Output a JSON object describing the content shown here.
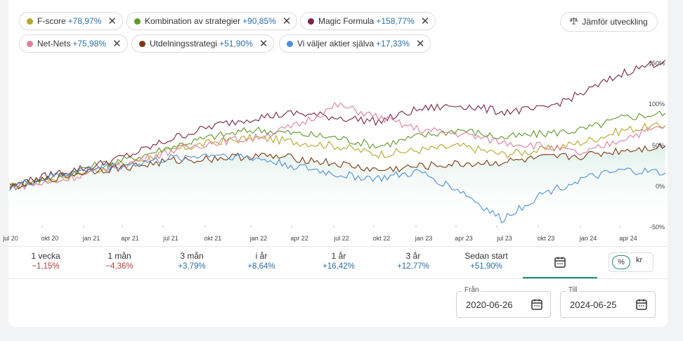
{
  "chips": [
    {
      "name": "F-score",
      "pct": "+78,97%",
      "color": "#b5a72a"
    },
    {
      "name": "Kombination av strategier",
      "pct": "+90,85%",
      "color": "#5e9a2a"
    },
    {
      "name": "Magic Formula",
      "pct": "+158,77%",
      "color": "#7a2448"
    },
    {
      "name": "Net-Nets",
      "pct": "+75,98%",
      "color": "#e07ea0"
    },
    {
      "name": "Utdelningsstrategi",
      "pct": "+51,90%",
      "color": "#7a3a12"
    },
    {
      "name": "Vi väljer aktier själva",
      "pct": "+17,33%",
      "color": "#4f8fdb"
    }
  ],
  "compare_button": "Jämför utveckling",
  "close_glyph": "✕",
  "chart_data": {
    "type": "line",
    "x_ticks": [
      "jul 20",
      "okt 20",
      "jan 21",
      "apr 21",
      "jul 21",
      "okt 21",
      "jan 22",
      "apr 22",
      "jul 22",
      "okt 22",
      "jan 23",
      "apr 23",
      "jul 23",
      "okt 23",
      "jan 24",
      "apr 24"
    ],
    "y_ticks": [
      "150%",
      "100%",
      "50%",
      "0%",
      "-50%"
    ],
    "ylim": [
      -50,
      170
    ],
    "x": [
      "2020-06",
      "2020-09",
      "2020-12",
      "2021-03",
      "2021-06",
      "2021-09",
      "2021-12",
      "2022-03",
      "2022-06",
      "2022-09",
      "2022-12",
      "2023-03",
      "2023-06",
      "2023-09",
      "2023-12",
      "2024-03",
      "2024-06"
    ],
    "series": [
      {
        "name": "F-score",
        "color": "#b5a72a",
        "values": [
          0,
          10,
          20,
          30,
          45,
          55,
          60,
          55,
          50,
          40,
          45,
          50,
          40,
          45,
          55,
          70,
          75
        ]
      },
      {
        "name": "Kombination av strategier",
        "color": "#5e9a2a",
        "values": [
          0,
          12,
          25,
          35,
          50,
          62,
          70,
          65,
          60,
          50,
          62,
          70,
          60,
          65,
          70,
          85,
          90
        ]
      },
      {
        "name": "Magic Formula",
        "color": "#7a2448",
        "values": [
          0,
          15,
          25,
          40,
          60,
          75,
          85,
          90,
          85,
          80,
          95,
          100,
          92,
          95,
          115,
          140,
          155
        ]
      },
      {
        "name": "Net-Nets",
        "color": "#e07ea0",
        "values": [
          0,
          5,
          18,
          30,
          45,
          55,
          60,
          75,
          100,
          85,
          70,
          65,
          55,
          50,
          40,
          60,
          75
        ]
      },
      {
        "name": "Utdelningsstrategi",
        "color": "#7a3a12",
        "values": [
          0,
          10,
          20,
          25,
          32,
          35,
          38,
          35,
          28,
          20,
          25,
          28,
          30,
          35,
          38,
          45,
          50
        ]
      },
      {
        "name": "Vi väljer aktier själva",
        "color": "#4f8fdb",
        "values": [
          0,
          12,
          22,
          28,
          35,
          40,
          35,
          25,
          15,
          10,
          18,
          -5,
          -40,
          -8,
          10,
          20,
          17
        ]
      }
    ]
  },
  "periods": [
    {
      "label": "1 vecka",
      "value": "−1,15%",
      "sign": "neg"
    },
    {
      "label": "1 mån",
      "value": "−4,36%",
      "sign": "neg"
    },
    {
      "label": "3 mån",
      "value": "+3,79%",
      "sign": "pos"
    },
    {
      "label": "i år",
      "value": "+8,64%",
      "sign": "pos"
    },
    {
      "label": "1 år",
      "value": "+16,42%",
      "sign": "pos"
    },
    {
      "label": "3 år",
      "value": "+12,77%",
      "sign": "pos"
    },
    {
      "label": "Sedan start",
      "value": "+51,90%",
      "sign": "pos"
    }
  ],
  "unit_toggle": {
    "pct": "%",
    "kr": "kr",
    "selected": "%"
  },
  "date_from": {
    "label": "Från",
    "value": "2020-06-26"
  },
  "date_to": {
    "label": "Till",
    "value": "2024-06-25"
  }
}
